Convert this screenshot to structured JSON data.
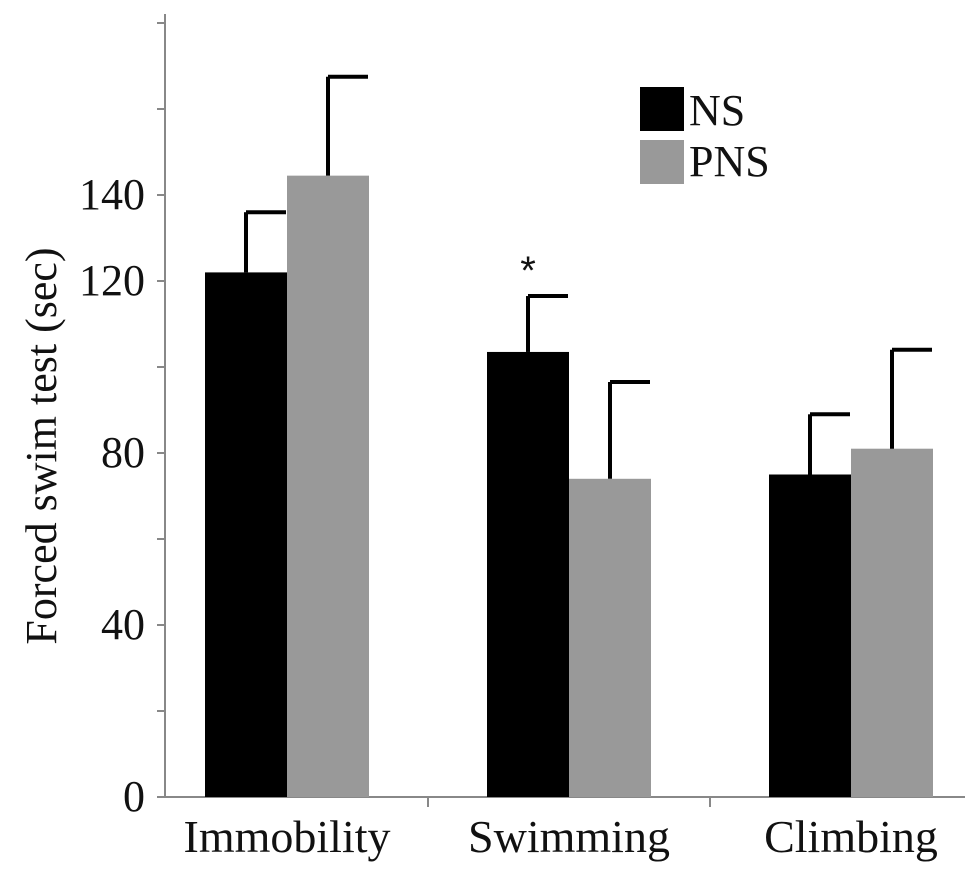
{
  "chart_data": {
    "type": "bar",
    "title": "",
    "xlabel": "",
    "ylabel": "Forced swim test (sec)",
    "categories": [
      "Immobility",
      "Swimming",
      "Climbing"
    ],
    "series": [
      {
        "name": "NS",
        "color": "#000000",
        "values": [
          122,
          103.5,
          75
        ],
        "errors": [
          14,
          13,
          14
        ]
      },
      {
        "name": "PNS",
        "color": "#999999",
        "values": [
          144.5,
          74,
          81
        ],
        "errors": [
          23,
          22.5,
          23
        ]
      }
    ],
    "ylim": [
      0,
      180
    ],
    "yticks": [
      "0",
      "40",
      "80",
      "120",
      "140"
    ],
    "ytick_values": [
      0,
      40,
      80,
      120,
      140
    ],
    "annotations": [
      {
        "text": "*",
        "category": "Swimming",
        "series": "NS"
      }
    ],
    "legend": {
      "position": "top-right",
      "entries": [
        "NS",
        "PNS"
      ]
    },
    "grid": false
  }
}
